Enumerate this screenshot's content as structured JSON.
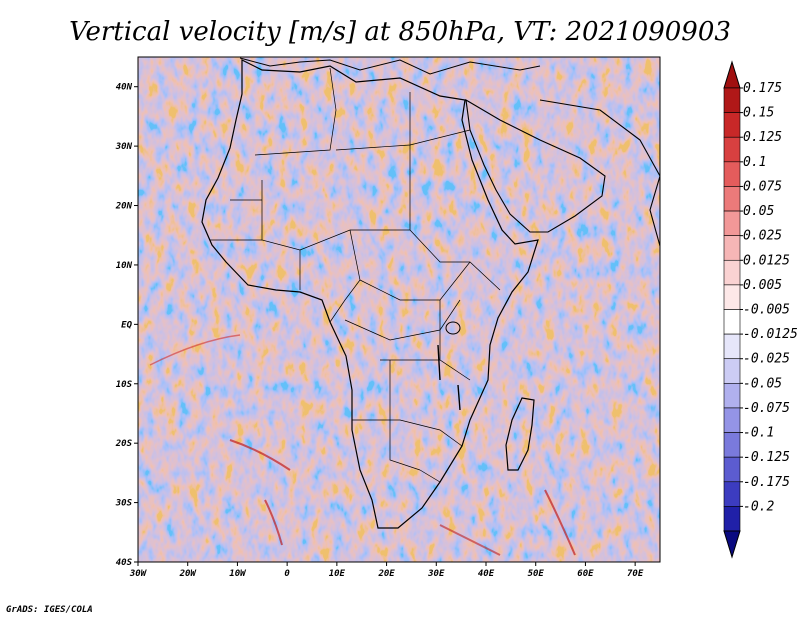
{
  "title": "Vertical velocity [m/s] at 850hPa, VT: 2021090903",
  "footer": "GrADS: IGES/COLA",
  "map": {
    "region": "Africa",
    "lon_range": [
      -30,
      75
    ],
    "lat_range": [
      -40,
      45
    ],
    "x_ticks": [
      {
        "lon": -30,
        "label": "30W"
      },
      {
        "lon": -20,
        "label": "20W"
      },
      {
        "lon": -10,
        "label": "10W"
      },
      {
        "lon": 0,
        "label": "0"
      },
      {
        "lon": 10,
        "label": "10E"
      },
      {
        "lon": 20,
        "label": "20E"
      },
      {
        "lon": 30,
        "label": "30E"
      },
      {
        "lon": 40,
        "label": "40E"
      },
      {
        "lon": 50,
        "label": "50E"
      },
      {
        "lon": 60,
        "label": "60E"
      },
      {
        "lon": 70,
        "label": "70E"
      }
    ],
    "y_ticks": [
      {
        "lat": 40,
        "label": "40N"
      },
      {
        "lat": 30,
        "label": "30N"
      },
      {
        "lat": 20,
        "label": "20N"
      },
      {
        "lat": 10,
        "label": "10N"
      },
      {
        "lat": 0,
        "label": "EQ"
      },
      {
        "lat": -10,
        "label": "10S"
      },
      {
        "lat": -20,
        "label": "20S"
      },
      {
        "lat": -30,
        "label": "30S"
      },
      {
        "lat": -40,
        "label": "40S"
      }
    ]
  },
  "colorbar": {
    "labels": [
      "0.175",
      "0.15",
      "0.125",
      "0.1",
      "0.075",
      "0.05",
      "0.025",
      "0.0125",
      "0.005",
      "-0.005",
      "-0.0125",
      "-0.025",
      "-0.05",
      "-0.075",
      "-0.1",
      "-0.125",
      "-0.175",
      "-0.2"
    ],
    "colors": [
      "#b01818",
      "#c82828",
      "#d84040",
      "#e45c5c",
      "#ec7a7a",
      "#f29898",
      "#f6b6b6",
      "#fad2d2",
      "#fde8e8",
      "#ffffff",
      "#e6e6fa",
      "#ccccf4",
      "#b0b0ee",
      "#9494e6",
      "#7a7adc",
      "#5c5cd0",
      "#3c3cc0",
      "#2020a8",
      "#0c0c90"
    ],
    "top_color": "#a01010",
    "bottom_color": "#0a0a80"
  }
}
